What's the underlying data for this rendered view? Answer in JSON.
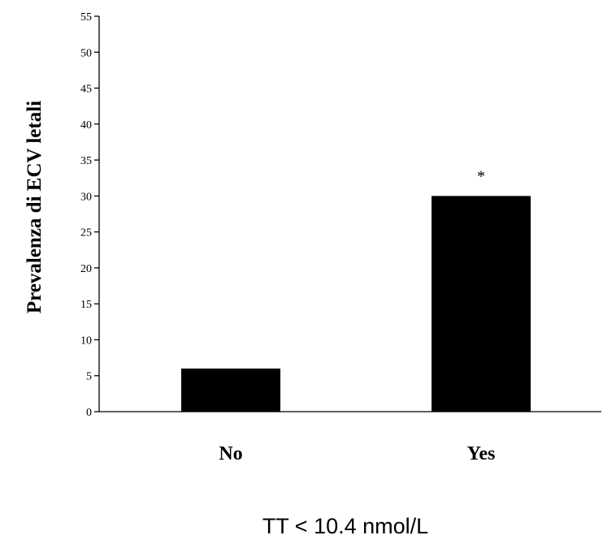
{
  "chart_data": {
    "type": "bar",
    "categories": [
      "No",
      "Yes"
    ],
    "values": [
      6,
      30
    ],
    "annotations": [
      "",
      "*"
    ],
    "xlabel": "TT < 10.4 nmol/L",
    "ylabel": "Prevalenza di ECV letali",
    "ylim": [
      0,
      55
    ],
    "yticks": [
      0,
      5,
      10,
      15,
      20,
      25,
      30,
      35,
      40,
      45,
      50,
      55
    ],
    "grid": false,
    "bar_color": "#000000"
  }
}
